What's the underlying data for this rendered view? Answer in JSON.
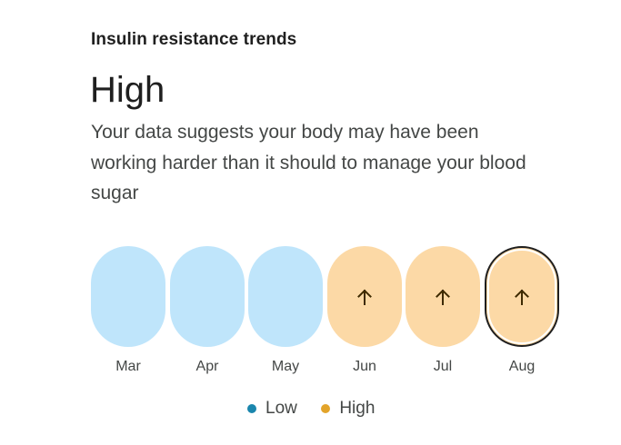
{
  "header": {
    "title": "Insulin resistance trends"
  },
  "status": {
    "level": "High",
    "description": "Your data suggests your body may have been working harder than it should to manage your blood sugar"
  },
  "trends": [
    {
      "month": "Mar",
      "level": "Low",
      "arrow": false,
      "selected": false
    },
    {
      "month": "Apr",
      "level": "Low",
      "arrow": false,
      "selected": false
    },
    {
      "month": "May",
      "level": "Low",
      "arrow": false,
      "selected": false
    },
    {
      "month": "Jun",
      "level": "High",
      "arrow": true,
      "selected": false
    },
    {
      "month": "Jul",
      "level": "High",
      "arrow": true,
      "selected": false
    },
    {
      "month": "Aug",
      "level": "High",
      "arrow": true,
      "selected": true
    }
  ],
  "legend": {
    "items": [
      {
        "label": "Low",
        "color": "#1a86ad"
      },
      {
        "label": "High",
        "color": "#e3a42a"
      }
    ]
  },
  "colors": {
    "low_fill": "#bfe5fb",
    "high_fill": "#fcd9a6",
    "arrow": "#3e2a00",
    "selected_border": "#1f1f1f"
  },
  "icons": {
    "trend_up": "arrow-up-icon"
  }
}
